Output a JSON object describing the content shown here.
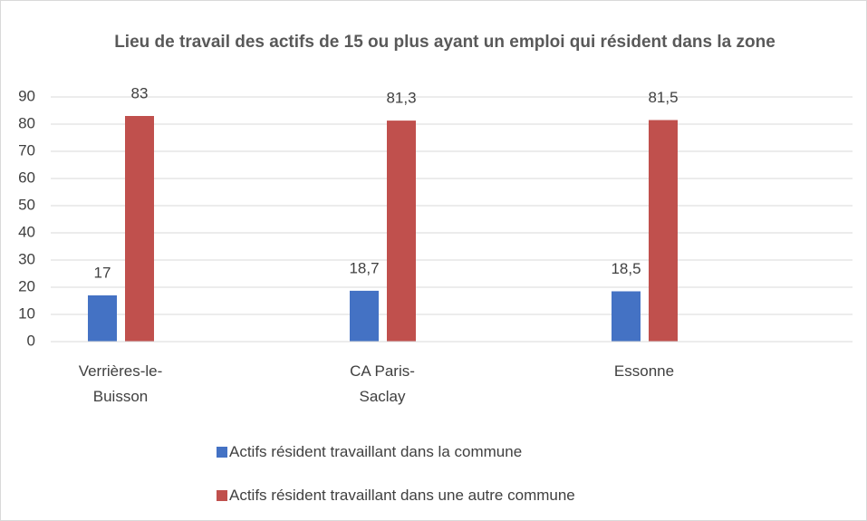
{
  "chart_data": {
    "type": "bar",
    "title": "Lieu de travail des actifs de 15 ou plus ayant un emploi qui résident dans la zone",
    "categories": [
      "Verrières-le-Buisson",
      "CA Paris-Saclay",
      "Essonne"
    ],
    "series": [
      {
        "name": "Actifs résident travaillant dans la commune",
        "color": "#4472c4",
        "values": [
          17,
          18.7,
          18.5
        ],
        "value_labels": [
          "17",
          "18,7",
          "18,5"
        ]
      },
      {
        "name": "Actifs résident travaillant dans une autre commune",
        "color": "#c0504d",
        "values": [
          83,
          81.3,
          81.5
        ],
        "value_labels": [
          "83",
          "81,3",
          "81,5"
        ]
      }
    ],
    "ylim": [
      0,
      90
    ],
    "yticks": [
      0,
      10,
      20,
      30,
      40,
      50,
      60,
      70,
      80,
      90
    ],
    "grid": true,
    "legend": "bottom"
  }
}
